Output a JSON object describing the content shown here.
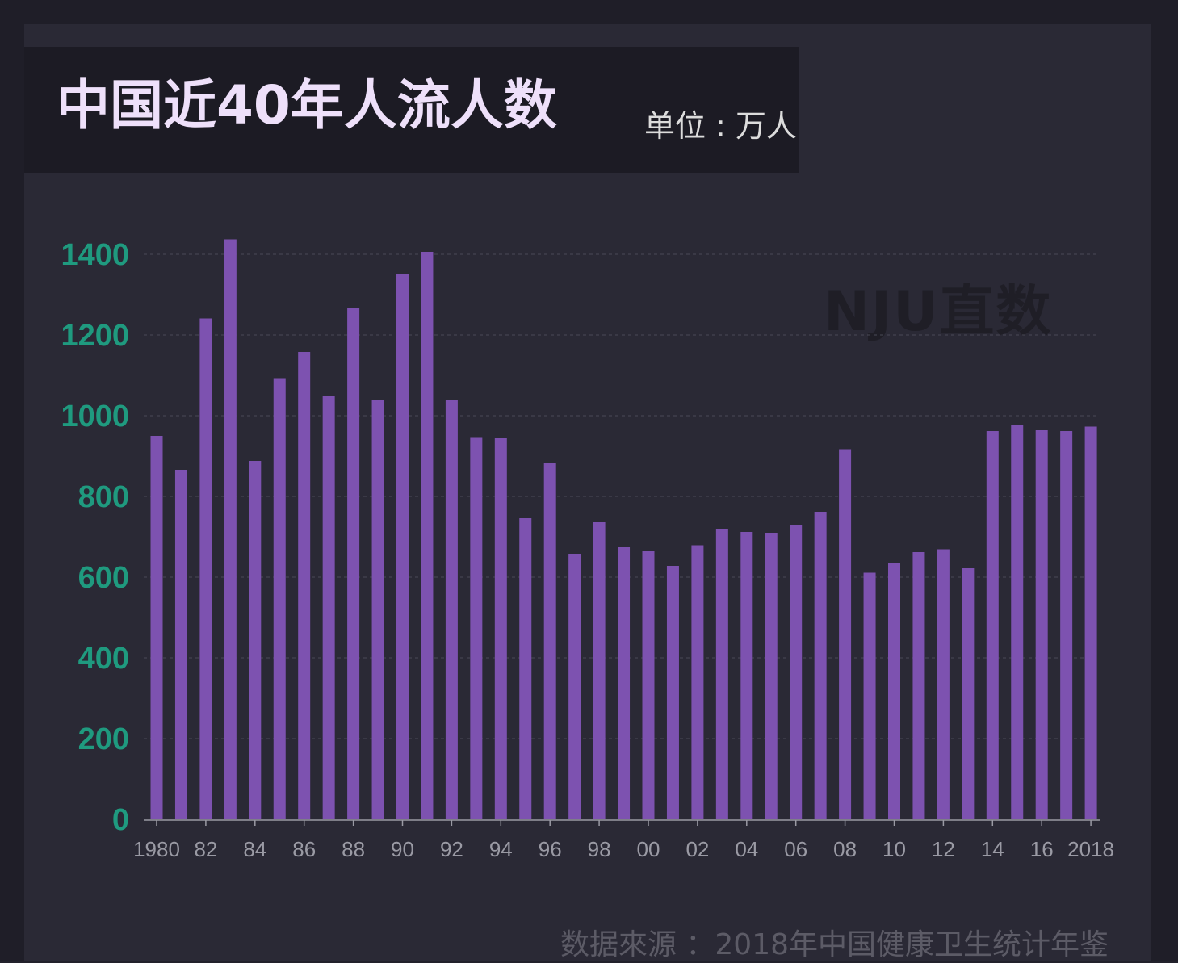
{
  "title": "中国近40年人流人数",
  "unit": "单位 : 万人",
  "watermark": "NJU直数",
  "source": "数据來源 ：2018年中国健康卫生统计年鉴",
  "colors": {
    "bar": "#7d52b0",
    "y_tick": "#1f9a7f",
    "x_tick": "#9a9aa4",
    "grid": "#4a4956",
    "axis": "#9a9aa4"
  },
  "chart_data": {
    "type": "bar",
    "title": "中国近40年人流人数",
    "xlabel": "",
    "ylabel": "",
    "ylim": [
      0,
      1400
    ],
    "y_ticks": [
      0,
      200,
      400,
      600,
      800,
      1000,
      1200,
      1400
    ],
    "grid": true,
    "categories": [
      1980,
      1981,
      1982,
      1983,
      1984,
      1985,
      1986,
      1987,
      1988,
      1989,
      1990,
      1991,
      1992,
      1993,
      1994,
      1995,
      1996,
      1997,
      1998,
      1999,
      2000,
      2001,
      2002,
      2003,
      2004,
      2005,
      2006,
      2007,
      2008,
      2009,
      2010,
      2011,
      2012,
      2013,
      2014,
      2015,
      2016,
      2017,
      2018
    ],
    "values": [
      950,
      866,
      1241,
      1437,
      888,
      1093,
      1158,
      1049,
      1268,
      1039,
      1350,
      1406,
      1040,
      947,
      944,
      746,
      883,
      658,
      736,
      674,
      664,
      628,
      679,
      720,
      712,
      710,
      728,
      762,
      917,
      611,
      636,
      662,
      669,
      622,
      962,
      977,
      964,
      962,
      973
    ],
    "tick_labels": [
      "1980",
      "82",
      "84",
      "86",
      "88",
      "90",
      "92",
      "94",
      "96",
      "98",
      "00",
      "02",
      "04",
      "06",
      "08",
      "10",
      "12",
      "14",
      "16",
      "2018"
    ],
    "tick_years": [
      1980,
      1982,
      1984,
      1986,
      1988,
      1990,
      1992,
      1994,
      1996,
      1998,
      2000,
      2002,
      2004,
      2006,
      2008,
      2010,
      2012,
      2014,
      2016,
      2018
    ]
  }
}
